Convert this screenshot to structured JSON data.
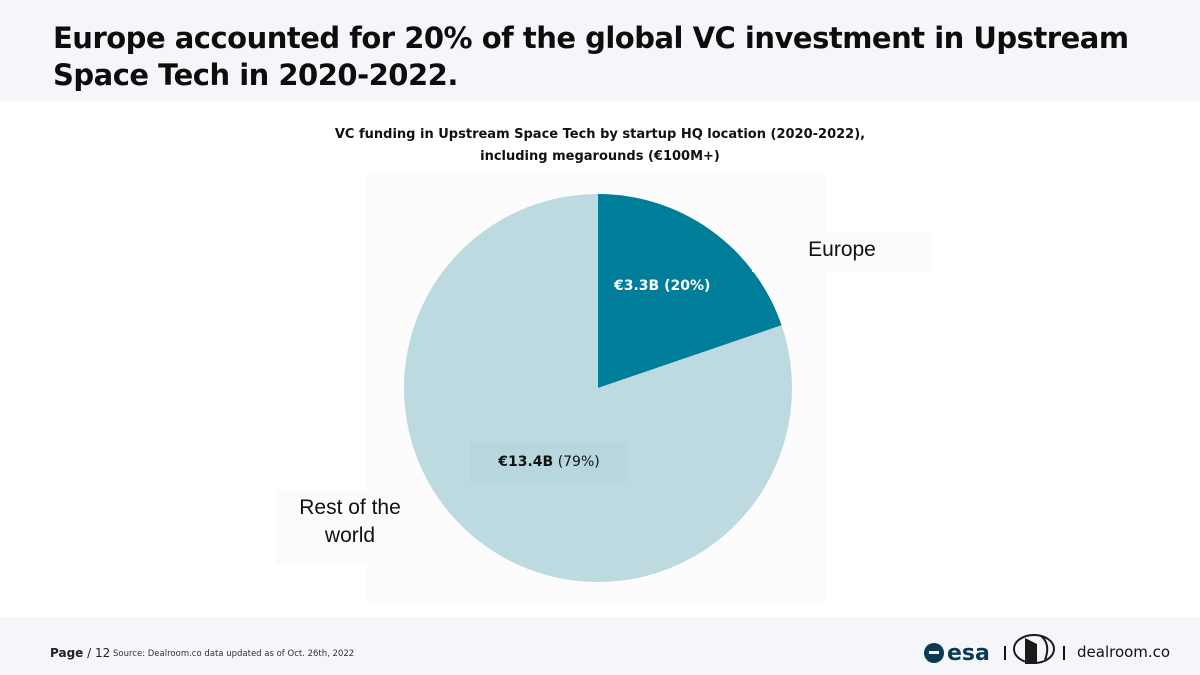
{
  "headline": "Europe accounted for 20% of the global VC investment in Upstream Space Tech in 2020-2022.",
  "chart_data": {
    "type": "pie",
    "title": "VC funding in Upstream Space Tech by startup HQ location (2020-2022),",
    "subtitle": "including megarounds (€100M+)",
    "slices": [
      {
        "name": "Europe",
        "value_label": "€3.3B",
        "percent_label": "(20%)",
        "value": 3.3,
        "percent": 20,
        "color": "#007e99"
      },
      {
        "name_lines": [
          "Rest of the",
          "world"
        ],
        "value_label": "€13.4B",
        "percent_label": "(79%)",
        "value": 13.4,
        "percent": 79,
        "color": "#bcdae0"
      }
    ]
  },
  "footer": {
    "page_label": "Page",
    "page_number": "/ 12",
    "source": "Source: Dealroom.co   data updated as of Oct. 26th, 2022",
    "logos": {
      "esa": "esa",
      "award_icon": "award-emblem-icon",
      "dealroom": "dealroom.co"
    }
  }
}
